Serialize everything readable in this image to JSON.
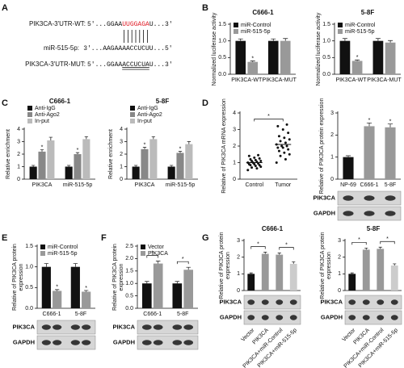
{
  "panel_labels": [
    "A",
    "B",
    "C",
    "D",
    "E",
    "F",
    "G"
  ],
  "panel_a": {
    "wt_label": "PIK3CA-3'UTR-WT:",
    "wt_prefix": "5'...GGAA",
    "wt_site": "UUGGAGA",
    "wt_suffix": "U...3'",
    "mir_label": "miR-515-5p:",
    "mir_seq": "3'...AAGAAAACCUCUU...5'",
    "mut_label": "PIK3CA-3'UTR-MUT:",
    "mut_prefix": "5'...GGAA",
    "mut_site": "ACCUCUA",
    "mut_suffix": "U...3'"
  },
  "chart_data": [
    {
      "type": "bar",
      "title": "C666-1",
      "ylabel": "Normalized luciferase activity",
      "categories": [
        "PIK3CA-WT",
        "PIK3CA-MUT"
      ],
      "series": [
        {
          "name": "miR-Control",
          "color": "#111111",
          "values": [
            1.0,
            1.0
          ],
          "errors": [
            0.06,
            0.06
          ]
        },
        {
          "name": "miR-515-5p",
          "color": "#999999",
          "values": [
            0.37,
            1.0
          ],
          "errors": [
            0.03,
            0.07
          ]
        }
      ],
      "ylim": [
        0,
        1.5
      ],
      "yticks": [
        {
          "value": 0,
          "label": "0.0"
        },
        {
          "value": 0.5,
          "label": "0.5"
        },
        {
          "value": 1,
          "label": "1.0"
        },
        {
          "value": 1.5,
          "label": "1.5"
        }
      ],
      "legend": "upper left",
      "annotations": [
        {
          "text": "*",
          "at": [
            0,
            1
          ]
        }
      ]
    },
    {
      "type": "bar",
      "title": "5-8F",
      "ylabel": "Normalized luciferase activity",
      "categories": [
        "PIK3CA-WT",
        "PIK3CA-MUT"
      ],
      "series": [
        {
          "name": "miR-Control",
          "color": "#111111",
          "values": [
            1.0,
            1.0
          ],
          "errors": [
            0.07,
            0.07
          ]
        },
        {
          "name": "miR-515-5p",
          "color": "#999999",
          "values": [
            0.4,
            0.95
          ],
          "errors": [
            0.03,
            0.06
          ]
        }
      ],
      "ylim": [
        0,
        1.5
      ],
      "yticks": [
        {
          "value": 0,
          "label": "0.0"
        },
        {
          "value": 0.5,
          "label": "0.5"
        },
        {
          "value": 1,
          "label": "1.0"
        },
        {
          "value": 1.5,
          "label": "1.5"
        }
      ],
      "legend": "upper left",
      "annotations": [
        {
          "text": "*",
          "at": [
            0,
            1
          ]
        }
      ]
    },
    {
      "type": "bar",
      "title": "C666-1",
      "ylabel": "Relative enrichment",
      "categories": [
        "PIK3CA",
        "miR-515-5p"
      ],
      "series": [
        {
          "name": "Anti-IgG",
          "color": "#111111",
          "values": [
            1.0,
            1.0
          ],
          "errors": [
            0.1,
            0.1
          ]
        },
        {
          "name": "Anti-Ago2",
          "color": "#888888",
          "values": [
            2.2,
            2.0
          ],
          "errors": [
            0.15,
            0.12
          ]
        },
        {
          "name": "In-put",
          "color": "#bbbbbb",
          "values": [
            3.1,
            3.2
          ],
          "errors": [
            0.25,
            0.2
          ]
        }
      ],
      "ylim": [
        0,
        4
      ],
      "yticks": [
        0,
        1,
        2,
        3,
        4
      ],
      "legend": "top",
      "annotations": [
        {
          "text": "*",
          "at": [
            0,
            1
          ]
        },
        {
          "text": "*",
          "at": [
            1,
            1
          ]
        }
      ]
    },
    {
      "type": "bar",
      "title": "5-8F",
      "ylabel": "Relative enrichment",
      "categories": [
        "PIK3CA",
        "miR-515-5p"
      ],
      "series": [
        {
          "name": "Anti-IgG",
          "color": "#111111",
          "values": [
            1.0,
            1.0
          ],
          "errors": [
            0.1,
            0.1
          ]
        },
        {
          "name": "Anti-Ago2",
          "color": "#888888",
          "values": [
            2.4,
            2.1
          ],
          "errors": [
            0.15,
            0.12
          ]
        },
        {
          "name": "In-put",
          "color": "#bbbbbb",
          "values": [
            3.2,
            2.8
          ],
          "errors": [
            0.2,
            0.2
          ]
        }
      ],
      "ylim": [
        0,
        4
      ],
      "yticks": [
        0,
        1,
        2,
        3,
        4
      ],
      "legend": "top",
      "annotations": [
        {
          "text": "*",
          "at": [
            0,
            1
          ]
        },
        {
          "text": "*",
          "at": [
            1,
            1
          ]
        }
      ]
    },
    {
      "type": "scatter",
      "ylabel": "Relative of PIK3CA mRNA expression",
      "categories": [
        "Control",
        "Tumor"
      ],
      "groups": [
        [
          0.55,
          0.65,
          0.7,
          0.75,
          0.8,
          0.85,
          0.85,
          0.9,
          0.9,
          0.95,
          1.0,
          1.0,
          1.05,
          1.1,
          1.1,
          1.15,
          1.2,
          1.25,
          1.3,
          1.4,
          1.45
        ],
        [
          1.0,
          1.2,
          1.4,
          1.5,
          1.6,
          1.7,
          1.8,
          1.9,
          1.9,
          2.0,
          2.0,
          2.1,
          2.2,
          2.3,
          2.4,
          2.5,
          2.6,
          2.8,
          3.0,
          3.2,
          3.3
        ]
      ],
      "means": [
        1.0,
        2.1
      ],
      "color": "#111111",
      "ylim": [
        0,
        4
      ],
      "yticks": [
        0,
        1,
        2,
        3,
        4
      ],
      "annotations": [
        {
          "text": "*",
          "from": [
            0,
            0
          ],
          "to": [
            1,
            0
          ]
        }
      ]
    },
    {
      "type": "bar",
      "ylabel": "Relative of PIK3CA protein expression",
      "categories": [
        "NP-69",
        "C666-1",
        "5-8F"
      ],
      "values": [
        1.0,
        2.4,
        2.35
      ],
      "errors": [
        0.06,
        0.15,
        0.15
      ],
      "colors": [
        "#111111",
        "#999999",
        "#999999"
      ],
      "ylim": [
        0,
        3
      ],
      "yticks": [
        0,
        1,
        2,
        3
      ],
      "blot_rows": [
        "PIK3CA",
        "GAPDH"
      ],
      "annotations": [
        {
          "text": "*",
          "at": [
            1,
            0
          ]
        },
        {
          "text": "*",
          "at": [
            2,
            0
          ]
        }
      ]
    },
    {
      "type": "bar",
      "ylabel": "Relative of PIK3CA protein expression",
      "categories": [
        "C666-1",
        "5-8F"
      ],
      "series": [
        {
          "name": "miR-Control",
          "color": "#111111",
          "values": [
            1.0,
            1.0
          ],
          "errors": [
            0.08,
            0.08
          ]
        },
        {
          "name": "miR-515-5p",
          "color": "#999999",
          "values": [
            0.42,
            0.4
          ],
          "errors": [
            0.03,
            0.03
          ]
        }
      ],
      "ylim": [
        0,
        1.5
      ],
      "yticks": [
        {
          "value": 0,
          "label": "0.0"
        },
        {
          "value": 0.5,
          "label": "0.5"
        },
        {
          "value": 1,
          "label": "1.0"
        },
        {
          "value": 1.5,
          "label": "1.5"
        }
      ],
      "legend": "upper left",
      "blot_rows": [
        "PIK3CA",
        "GAPDH"
      ],
      "annotations": [
        {
          "text": "*",
          "at": [
            0,
            1
          ]
        },
        {
          "text": "*",
          "at": [
            1,
            1
          ]
        }
      ]
    },
    {
      "type": "bar",
      "ylabel": "Relative of PIK3CA protein expression",
      "categories": [
        "C666-1",
        "5-8F"
      ],
      "series": [
        {
          "name": "Vector",
          "color": "#111111",
          "values": [
            1.0,
            1.0
          ],
          "errors": [
            0.08,
            0.08
          ]
        },
        {
          "name": "PIK3CA",
          "color": "#999999",
          "values": [
            1.8,
            1.55
          ],
          "errors": [
            0.1,
            0.1
          ]
        }
      ],
      "ylim": [
        0,
        2.5
      ],
      "yticks": [
        {
          "value": 0,
          "label": "0.0"
        },
        {
          "value": 0.5,
          "label": "0.5"
        },
        {
          "value": 1,
          "label": "1.0"
        },
        {
          "value": 1.5,
          "label": "1.5"
        },
        {
          "value": 2,
          "label": "2.0"
        },
        {
          "value": 2.5,
          "label": "2.5"
        }
      ],
      "legend": "upper left",
      "blot_rows": [
        "PIK3CA",
        "GAPDH"
      ],
      "annotations": [
        {
          "text": "*",
          "from": [
            0,
            0
          ],
          "to": [
            0,
            1
          ]
        },
        {
          "text": "*",
          "from": [
            1,
            0
          ],
          "to": [
            1,
            1
          ]
        }
      ]
    },
    {
      "type": "bar",
      "title": "C666-1",
      "ylabel": "Relative of PIK3CA protein expression",
      "categories": [
        "Vector",
        "PIK3CA",
        "PIK3CA+miR-Control",
        "PIK3CA+miR-515-5p"
      ],
      "values": [
        1.0,
        2.2,
        2.15,
        1.6
      ],
      "errors": [
        0.06,
        0.1,
        0.1,
        0.12
      ],
      "colors": [
        "#111111",
        "#999999",
        "#999999",
        "#cccccc"
      ],
      "ylim": [
        0,
        3
      ],
      "yticks": [
        0,
        1,
        2,
        3
      ],
      "blot_rows": [
        "PIK3CA",
        "GAPDH"
      ],
      "xtick_rotation": 45,
      "annotations": [
        {
          "text": "*",
          "from": [
            0,
            0
          ],
          "to": [
            1,
            0
          ]
        },
        {
          "text": "*",
          "from": [
            2,
            0
          ],
          "to": [
            3,
            0
          ]
        }
      ]
    },
    {
      "type": "bar",
      "title": "5-8F",
      "ylabel": "Relative of PIK3CA protein expression",
      "categories": [
        "Vector",
        "PIK3CA",
        "PIK3CA+miR-Control",
        "PIK3CA+miR-515-5p"
      ],
      "values": [
        1.0,
        2.45,
        2.5,
        1.5
      ],
      "errors": [
        0.06,
        0.1,
        0.1,
        0.1
      ],
      "colors": [
        "#111111",
        "#999999",
        "#999999",
        "#cccccc"
      ],
      "ylim": [
        0,
        3
      ],
      "yticks": [
        0,
        1,
        2,
        3
      ],
      "blot_rows": [
        "PIK3CA",
        "GAPDH"
      ],
      "xtick_rotation": 45,
      "annotations": [
        {
          "text": "*",
          "from": [
            0,
            0
          ],
          "to": [
            1,
            0
          ]
        },
        {
          "text": "*",
          "from": [
            2,
            0
          ],
          "to": [
            3,
            0
          ]
        }
      ]
    }
  ]
}
